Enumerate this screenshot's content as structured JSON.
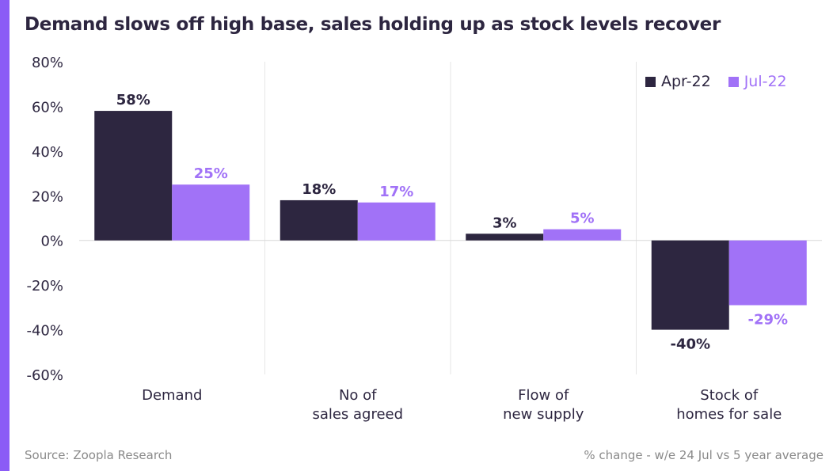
{
  "title": "Demand slows off high base, sales holding up as stock levels recover",
  "footer": {
    "source": "Source: Zoopla Research",
    "note": "% change - w/e 24 Jul vs 5 year average"
  },
  "colors": {
    "accent": "#8b5cf6",
    "apr": "#2d2640",
    "jul": "#a172f7"
  },
  "chart_data": {
    "type": "bar",
    "title": "Demand slows off high base, sales holding up as stock levels recover",
    "categories": [
      [
        "Demand"
      ],
      [
        "No of",
        "sales agreed"
      ],
      [
        "Flow of",
        "new supply"
      ],
      [
        "Stock of",
        "homes for sale"
      ]
    ],
    "series": [
      {
        "name": "Apr-22",
        "values": [
          58,
          18,
          3,
          -40
        ],
        "labels": [
          "58%",
          "18%",
          "3%",
          "-40%"
        ],
        "color": "#2d2640"
      },
      {
        "name": "Jul-22",
        "values": [
          25,
          17,
          5,
          -29
        ],
        "labels": [
          "25%",
          "17%",
          "5%",
          "-29%"
        ],
        "color": "#a172f7"
      }
    ],
    "ylim": [
      -60,
      80
    ],
    "yticks": [
      80,
      60,
      40,
      20,
      0,
      -20,
      -40,
      -60
    ],
    "ytick_labels": [
      "80%",
      "60%",
      "40%",
      "20%",
      "0%",
      "-20%",
      "-40%",
      "-60%"
    ],
    "xlabel": "",
    "ylabel": "",
    "grid": "vertical separators",
    "legend_position": "top-right"
  }
}
